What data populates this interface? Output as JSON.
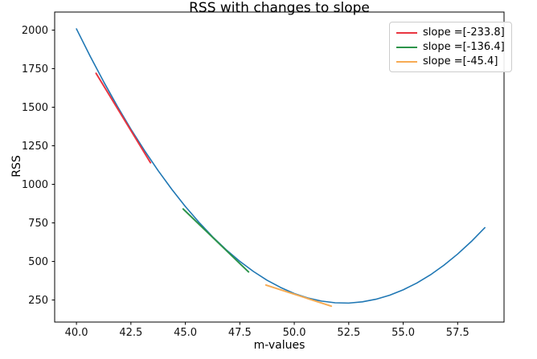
{
  "chart_data": {
    "type": "line",
    "title": "RSS with changes to slope",
    "xlabel": "m-values",
    "ylabel": "RSS",
    "xlim": [
      39.0,
      59.63
    ],
    "ylim": [
      107,
      2117
    ],
    "grid": false,
    "legend_position": "upper right",
    "x_ticks": [
      {
        "value": 40.0,
        "label": "40.0"
      },
      {
        "value": 42.5,
        "label": "42.5"
      },
      {
        "value": 45.0,
        "label": "45.0"
      },
      {
        "value": 47.5,
        "label": "47.5"
      },
      {
        "value": 50.0,
        "label": "50.0"
      },
      {
        "value": 52.5,
        "label": "52.5"
      },
      {
        "value": 55.0,
        "label": "55.0"
      },
      {
        "value": 57.5,
        "label": "57.5"
      }
    ],
    "y_ticks": [
      {
        "value": 250,
        "label": "250"
      },
      {
        "value": 500,
        "label": "500"
      },
      {
        "value": 750,
        "label": "750"
      },
      {
        "value": 1000,
        "label": "1000"
      },
      {
        "value": 1250,
        "label": "1250"
      },
      {
        "value": 1500,
        "label": "1500"
      },
      {
        "value": 1750,
        "label": "1750"
      },
      {
        "value": 2000,
        "label": "2000"
      }
    ],
    "series": [
      {
        "name": "rss-curve",
        "label": "",
        "in_legend": false,
        "color": "#1f77b4",
        "width": 1.6,
        "x": [
          40,
          40.625,
          41.25,
          41.875,
          42.5,
          43.125,
          43.75,
          44.375,
          45,
          45.625,
          46.25,
          46.875,
          47.5,
          48.125,
          48.75,
          49.375,
          50,
          50.625,
          51.25,
          51.875,
          52.5,
          53.125,
          53.75,
          54.375,
          55,
          55.625,
          56.25,
          56.875,
          57.5,
          58.125,
          58.75
        ],
        "y": [
          2008,
          1832,
          1665,
          1507,
          1358,
          1219,
          1089,
          968,
          856,
          754,
          660,
          576,
          501,
          435,
          378,
          331,
          292,
          263,
          243,
          232,
          230,
          238,
          255,
          281,
          316,
          360,
          413,
          476,
          548,
          629,
          719
        ]
      },
      {
        "name": "tangent-steep",
        "label": "slope =[-233.8]",
        "in_legend": true,
        "color": "#e93540",
        "width": 2,
        "x": [
          40.9,
          43.4
        ],
        "y": [
          1720,
          1140
        ]
      },
      {
        "name": "tangent-mid",
        "label": "slope =[-136.4]",
        "in_legend": true,
        "color": "#2c944a",
        "width": 2,
        "x": [
          44.9,
          47.9
        ],
        "y": [
          840,
          432
        ]
      },
      {
        "name": "tangent-shallow",
        "label": "slope =[-45.4]",
        "in_legend": true,
        "color": "#f7ab53",
        "width": 2,
        "x": [
          48.7,
          51.7
        ],
        "y": [
          347,
          210
        ]
      }
    ]
  }
}
